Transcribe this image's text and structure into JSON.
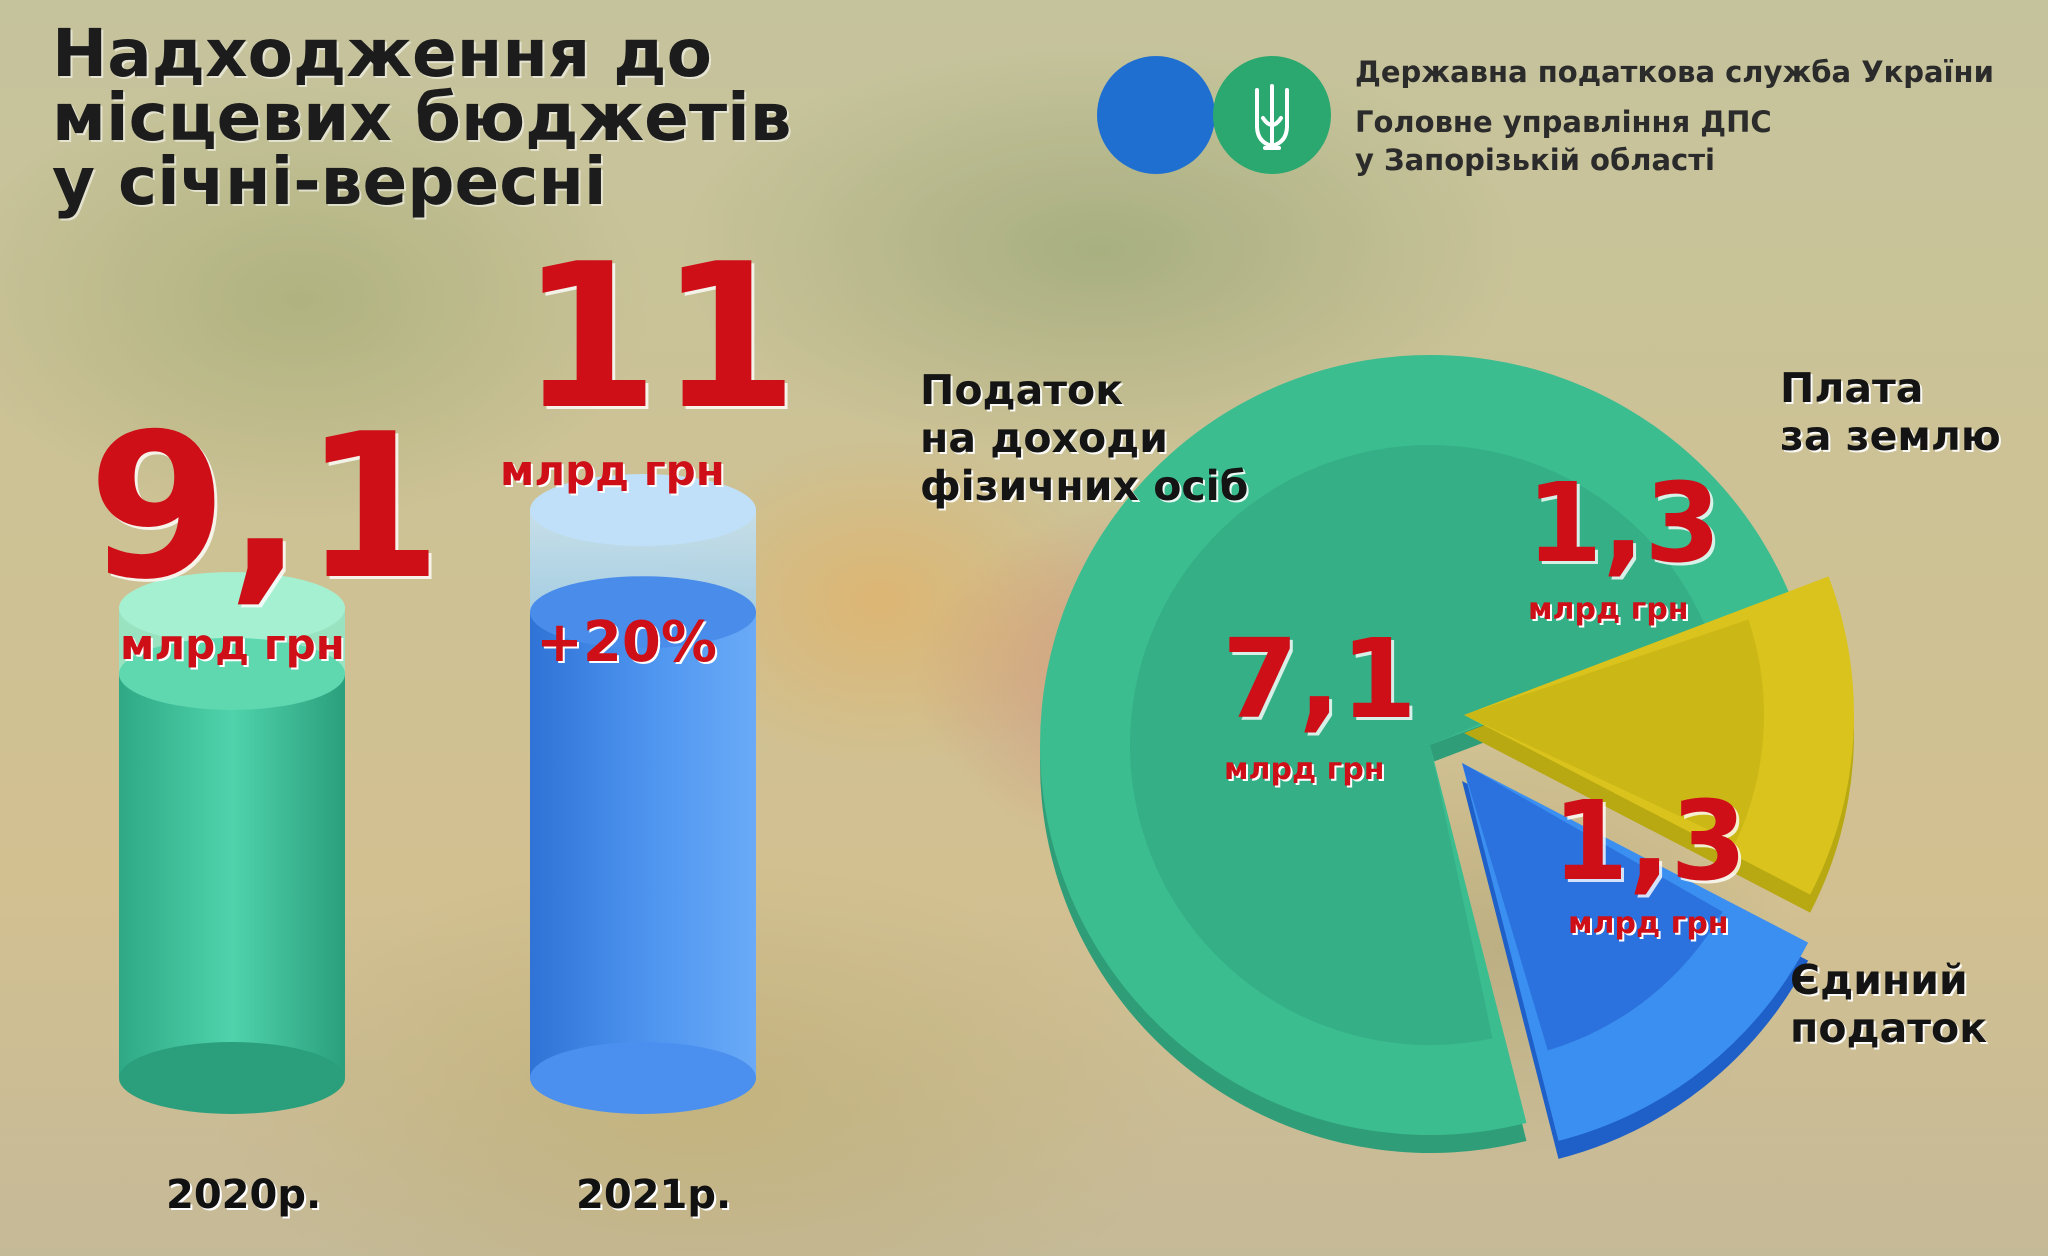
{
  "title": {
    "line1": "Надходження до",
    "line2": "місцевих бюджетів",
    "line3": "у січні-вересні"
  },
  "org": {
    "line1": "Державна податкова служба України",
    "line2": "Головне управління ДПС",
    "line3": "у Запорізькій області"
  },
  "colors": {
    "accent_red": "#cf0f18",
    "green": "#3fbf98",
    "blue": "#3b8ff0",
    "yellow": "#d4c21a",
    "logo_blue": "#1f6fd1",
    "logo_green": "#2aa86f"
  },
  "chart_data": [
    {
      "type": "bar",
      "categories": [
        "2020р.",
        "2021р."
      ],
      "values": [
        9.1,
        11
      ],
      "labels": [
        "9,1",
        "11"
      ],
      "unit": "млрд грн",
      "change_label": "+20%"
    },
    {
      "type": "pie",
      "slices": [
        {
          "label": "Податок на доходи фізичних осіб",
          "label_lines": [
            "Податок",
            "на доходи",
            "фізичних осіб"
          ],
          "value": 7.1,
          "value_label": "7,1",
          "unit": "млрд грн"
        },
        {
          "label": "Плата за землю",
          "label_lines": [
            "Плата",
            "за землю"
          ],
          "value": 1.3,
          "value_label": "1,3",
          "unit": "млрд грн"
        },
        {
          "label": "Єдиний податок",
          "label_lines": [
            "Єдиний",
            "податок"
          ],
          "value": 1.3,
          "value_label": "1,3",
          "unit": "млрд грн"
        }
      ]
    }
  ]
}
